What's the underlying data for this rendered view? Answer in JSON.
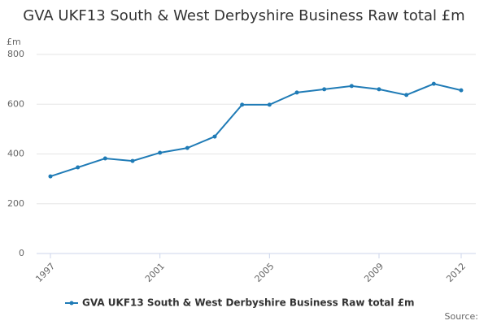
{
  "chart_data": {
    "type": "line",
    "title": "GVA UKF13 South & West Derbyshire Business Raw total £m",
    "y_label": "£m",
    "source": "Source:",
    "x": [
      1997,
      1998,
      1999,
      2000,
      2001,
      2002,
      2003,
      2004,
      2005,
      2006,
      2007,
      2008,
      2009,
      2010,
      2011,
      2012
    ],
    "xlim": [
      1997,
      2012
    ],
    "xticks": [
      1997,
      2001,
      2005,
      2009,
      2012
    ],
    "ylim": [
      0,
      800
    ],
    "yticks": [
      0,
      200,
      400,
      600,
      800
    ],
    "grid": true,
    "legend": "bottom",
    "series": [
      {
        "name": "GVA UKF13 South & West Derbyshire Business Raw total £m",
        "color": "#1f7bb6",
        "values": [
          310,
          346,
          382,
          372,
          405,
          424,
          470,
          598,
          598,
          647,
          660,
          673,
          660,
          637,
          682,
          656
        ]
      }
    ]
  }
}
